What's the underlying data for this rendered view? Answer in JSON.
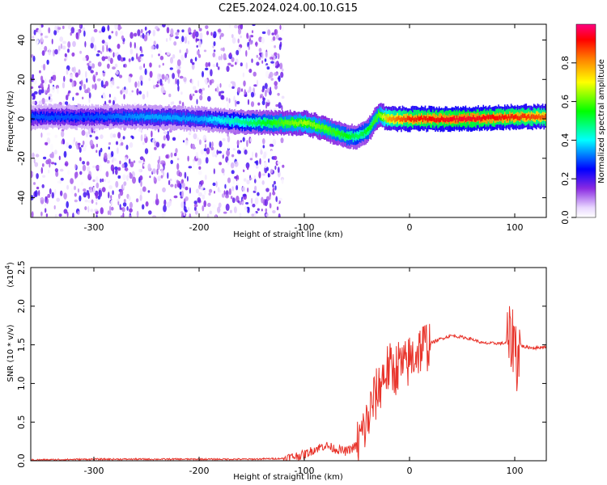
{
  "title": "C2E5.2024.024.00.10.G15",
  "chart_data": [
    {
      "type": "heatmap",
      "xlabel": "Height of straight line (km)",
      "ylabel": "Frequency (Hz)",
      "xlim": [
        -360,
        130
      ],
      "ylim": [
        -50,
        48
      ],
      "xticks": [
        -300,
        -200,
        -100,
        0,
        100
      ],
      "yticks": [
        -40,
        -20,
        0,
        20,
        40
      ],
      "grid": false,
      "colorbar": {
        "label": "Normalized spectral amplitude",
        "range": [
          0.0,
          1.0
        ],
        "ticks": [
          0.0,
          0.2,
          0.4,
          0.6,
          0.8
        ],
        "tick_labels": [
          "0.0",
          "0.2",
          "0.4",
          "0.6",
          "0.8"
        ]
      },
      "ridge": {
        "description_points_x": [
          -360,
          -300,
          -250,
          -200,
          -150,
          -120,
          -100,
          -80,
          -60,
          -50,
          -40,
          -30,
          -20,
          0,
          50,
          100,
          130
        ],
        "freq_hz": [
          1,
          1,
          1,
          0,
          -2,
          -2,
          -2,
          -5,
          -9,
          -9,
          -6,
          2,
          0,
          0,
          0,
          1,
          1
        ],
        "amplitude": [
          0.3,
          0.3,
          0.35,
          0.35,
          0.5,
          0.6,
          0.65,
          0.6,
          0.55,
          0.5,
          0.55,
          0.6,
          0.8,
          0.9,
          0.95,
          0.9,
          0.85
        ]
      },
      "noise_region_x": [
        -360,
        -130
      ]
    },
    {
      "type": "line",
      "xlabel": "Height of straight line (km)",
      "ylabel": "SNR (10 * v/v)",
      "y_exponent_label": "(x10",
      "y_exponent_power": "4",
      "y_exponent_close": ")",
      "xlim": [
        -360,
        130
      ],
      "ylim": [
        0,
        2.5
      ],
      "xticks": [
        -300,
        -200,
        -100,
        0,
        100
      ],
      "yticks": [
        0.0,
        0.5,
        1.0,
        1.5,
        2.0,
        2.5
      ],
      "ytick_labels": [
        "0.0",
        "0.5",
        "1.0",
        "1.5",
        "2.0",
        "2.5"
      ],
      "grid": false,
      "color": "#e8332a",
      "series": [
        {
          "x": [
            -360,
            -300,
            -250,
            -200,
            -150,
            -120,
            -100,
            -90,
            -80,
            -70,
            -60,
            -50,
            -45,
            -40,
            -35,
            -30,
            -25,
            -20,
            -15,
            -10,
            -5,
            0,
            10,
            20,
            30,
            40,
            50,
            60,
            70,
            80,
            90,
            95,
            100,
            102,
            105,
            110,
            120,
            130
          ],
          "y": [
            0.01,
            0.02,
            0.02,
            0.02,
            0.02,
            0.03,
            0.08,
            0.15,
            0.2,
            0.15,
            0.12,
            0.2,
            0.35,
            0.5,
            0.75,
            0.9,
            1.1,
            1.2,
            1.15,
            1.25,
            1.2,
            1.3,
            1.45,
            1.52,
            1.58,
            1.62,
            1.6,
            1.57,
            1.52,
            1.52,
            1.52,
            1.55,
            1.6,
            1.3,
            1.5,
            1.47,
            1.46,
            1.48
          ]
        }
      ]
    }
  ]
}
